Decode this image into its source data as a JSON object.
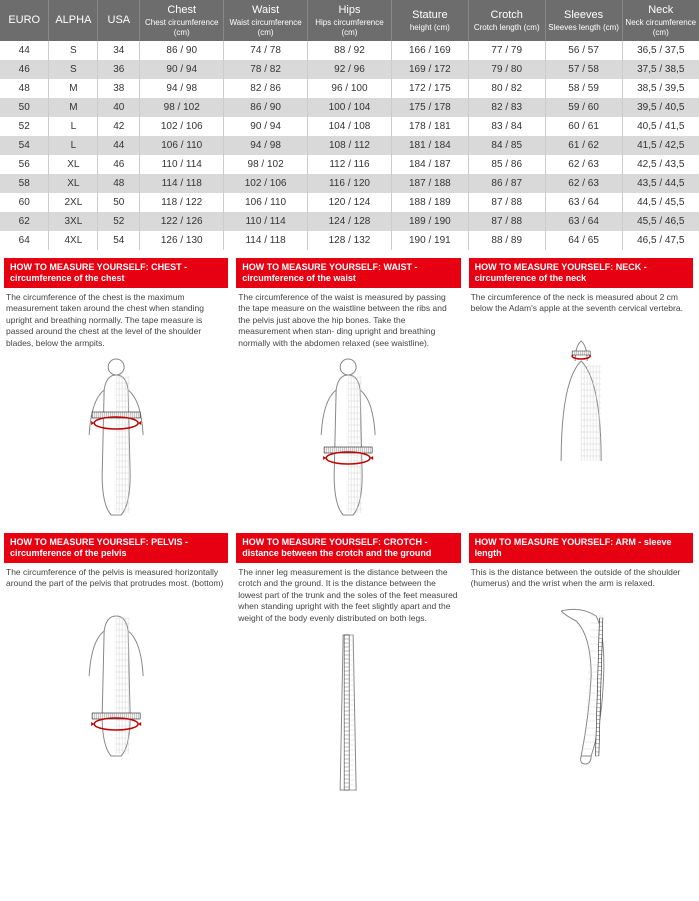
{
  "table": {
    "columns": [
      {
        "main": "EURO",
        "sub": ""
      },
      {
        "main": "ALPHA",
        "sub": ""
      },
      {
        "main": "USA",
        "sub": ""
      },
      {
        "main": "Chest",
        "sub": "Chest circumference (cm)"
      },
      {
        "main": "Waist",
        "sub": "Waist circumference (cm)"
      },
      {
        "main": "Hips",
        "sub": "Hips circumference (cm)"
      },
      {
        "main": "Stature",
        "sub": "height (cm)"
      },
      {
        "main": "Crotch",
        "sub": "Crotch length (cm)"
      },
      {
        "main": "Sleeves",
        "sub": "Sleeves length (cm)"
      },
      {
        "main": "Neck",
        "sub": "Neck circumference (cm)"
      }
    ],
    "rows": [
      [
        "44",
        "S",
        "34",
        "86 / 90",
        "74 / 78",
        "88 / 92",
        "166 / 169",
        "77 / 79",
        "56 / 57",
        "36,5 / 37,5"
      ],
      [
        "46",
        "S",
        "36",
        "90 / 94",
        "78 / 82",
        "92 / 96",
        "169 / 172",
        "79 / 80",
        "57 / 58",
        "37,5 / 38,5"
      ],
      [
        "48",
        "M",
        "38",
        "94 / 98",
        "82 / 86",
        "96 / 100",
        "172 / 175",
        "80 / 82",
        "58 / 59",
        "38,5 / 39,5"
      ],
      [
        "50",
        "M",
        "40",
        "98 / 102",
        "86 / 90",
        "100 / 104",
        "175 / 178",
        "82 / 83",
        "59 / 60",
        "39,5 / 40,5"
      ],
      [
        "52",
        "L",
        "42",
        "102 / 106",
        "90 / 94",
        "104 / 108",
        "178 / 181",
        "83 / 84",
        "60 / 61",
        "40,5 / 41,5"
      ],
      [
        "54",
        "L",
        "44",
        "106 / 110",
        "94 / 98",
        "108 / 112",
        "181 / 184",
        "84 / 85",
        "61 / 62",
        "41,5 / 42,5"
      ],
      [
        "56",
        "XL",
        "46",
        "110 / 114",
        "98 / 102",
        "112 / 116",
        "184 / 187",
        "85 / 86",
        "62 / 63",
        "42,5 / 43,5"
      ],
      [
        "58",
        "XL",
        "48",
        "114 / 118",
        "102 / 106",
        "116 / 120",
        "187 / 188",
        "86 / 87",
        "62 / 63",
        "43,5 / 44,5"
      ],
      [
        "60",
        "2XL",
        "50",
        "118 / 122",
        "106 / 110",
        "120 / 124",
        "188 / 189",
        "87 / 88",
        "63 / 64",
        "44,5 / 45,5"
      ],
      [
        "62",
        "3XL",
        "52",
        "122 / 126",
        "110 / 114",
        "124 / 128",
        "189 / 190",
        "87 / 88",
        "63 / 64",
        "45,5 / 46,5"
      ],
      [
        "64",
        "4XL",
        "54",
        "126 / 130",
        "114 / 118",
        "128 / 132",
        "190 / 191",
        "88 / 89",
        "64 / 65",
        "46,5 / 47,5"
      ]
    ],
    "col_widths_pct": [
      7,
      7,
      6,
      12,
      12,
      12,
      11,
      11,
      11,
      11
    ],
    "header_bg": "#6d6d6d",
    "header_text": "#ffffff",
    "row_even_bg": "#d9d9d9",
    "row_odd_bg": "#ffffff",
    "text_color": "#333333"
  },
  "guides": [
    {
      "title": "HOW TO MEASURE YOURSELF: CHEST - circumference of the chest",
      "desc": "The circumference of the chest is the maximum measurement taken around the chest when standing upright and breathing normally. The tape measure is passed around the chest at the level of the shoulder blades, below the armpits.",
      "figure": "chest"
    },
    {
      "title": "HOW TO MEASURE YOURSELF: WAIST - circumference of the waist",
      "desc": "The circumference of the waist is measured by passing the tape measure on the waistline between the ribs and the pelvis just above the hip bones. Take the measurement when stan- ding upright and breathing normally with the abdomen relaxed (see waistline).",
      "figure": "waist"
    },
    {
      "title": "HOW TO MEASURE YOURSELF: NECK - circumference of the neck",
      "desc": "The circumference of the neck is measured about 2 cm below the Adam's apple at the seventh cervical vertebra.",
      "figure": "neck"
    },
    {
      "title": "HOW TO MEASURE YOURSELF: PELVIS - circumference of the pelvis",
      "desc": "The circumference of the pelvis is measured horizontally around the part of the pelvis that protrudes most. (bottom)",
      "figure": "pelvis"
    },
    {
      "title": "HOW TO MEASURE YOURSELF: CROTCH - distance between the crotch and the ground",
      "desc": "The inner leg measurement is the distance between the crotch and the ground. It is the distance between the lowest part of the trunk and the soles of the feet measured when standing upright with the feet slightly apart and the weight of the body evenly distributed on both legs.",
      "figure": "crotch"
    },
    {
      "title": "HOW TO MEASURE YOURSELF: ARM - sleeve length",
      "desc": "This is the distance between the outside of the shoulder (humerus) and the wrist when the arm is relaxed.",
      "figure": "arm"
    }
  ],
  "colors": {
    "accent": "#e60012",
    "mesh": "#bbbbbb",
    "outline": "#888888",
    "tape": "#c00000",
    "ruler": "#222222"
  }
}
